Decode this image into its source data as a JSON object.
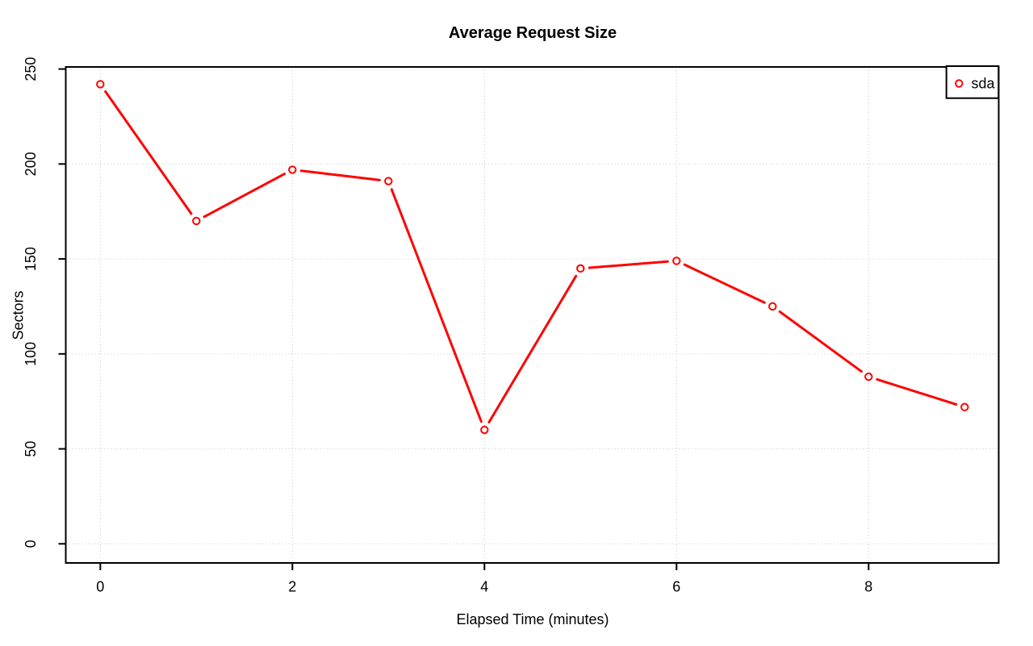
{
  "chart_data": {
    "type": "line",
    "title": "Average Request Size",
    "xlabel": "Elapsed Time (minutes)",
    "ylabel": "Sectors",
    "x": [
      0,
      1,
      2,
      3,
      4,
      5,
      6,
      7,
      8,
      9
    ],
    "series": [
      {
        "name": "sda",
        "color": "#FF0000",
        "marker": "open-circle",
        "line_type": "segments-with-gaps",
        "values": [
          242,
          170,
          197,
          191,
          60,
          145,
          149,
          125,
          88,
          72
        ]
      }
    ],
    "xlim": [
      0,
      9
    ],
    "ylim": [
      0,
      250
    ],
    "xticks": [
      0,
      2,
      4,
      6,
      8
    ],
    "yticks": [
      0,
      50,
      100,
      150,
      200,
      250
    ],
    "grid": "dotted",
    "legend_position": "top-right",
    "legend_entries": [
      "sda"
    ],
    "colors": {
      "series": "#FF0000",
      "grid": "#C8C8C8",
      "axis": "#000000",
      "background": "#FFFFFF"
    }
  }
}
